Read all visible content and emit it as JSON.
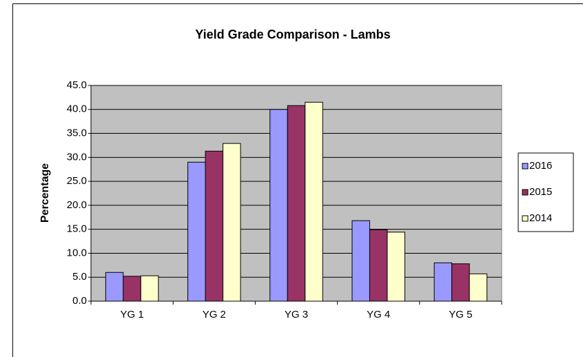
{
  "chart_data": {
    "type": "bar",
    "title": "Yield Grade Comparison - Lambs",
    "y_label": "Percentage",
    "categories": [
      "YG 1",
      "YG 2",
      "YG 3",
      "YG 4",
      "YG 5"
    ],
    "series": [
      {
        "name": "2016",
        "color": "#9999ff",
        "values": [
          6.0,
          29.0,
          40.0,
          16.8,
          8.0
        ]
      },
      {
        "name": "2015",
        "color": "#993366",
        "values": [
          5.2,
          31.3,
          40.8,
          14.9,
          7.8
        ]
      },
      {
        "name": "2014",
        "color": "#ffffcc",
        "values": [
          5.3,
          32.9,
          41.5,
          14.4,
          5.7
        ]
      }
    ],
    "ylim": [
      0,
      45
    ],
    "yticks": [
      {
        "value": 0,
        "label": "0.0"
      },
      {
        "value": 5,
        "label": "5.0"
      },
      {
        "value": 10,
        "label": "10.0"
      },
      {
        "value": 15,
        "label": "15.0"
      },
      {
        "value": 20,
        "label": "20.0"
      },
      {
        "value": 25,
        "label": "25.0"
      },
      {
        "value": 30,
        "label": "30.0"
      },
      {
        "value": 35,
        "label": "35.0"
      },
      {
        "value": 40,
        "label": "40.0"
      },
      {
        "value": 45,
        "label": "45.0"
      }
    ],
    "grid": true,
    "plot_background": "#c0c0c0",
    "legend": "right"
  }
}
